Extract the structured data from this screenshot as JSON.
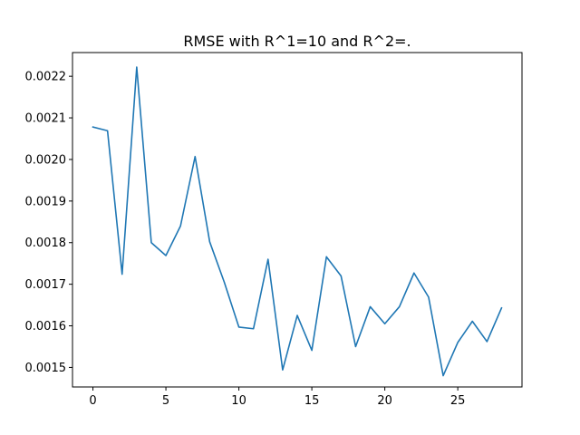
{
  "chart_data": {
    "type": "line",
    "title": "RMSE with R^1=10 and R^2=.",
    "xlabel": "",
    "ylabel": "",
    "xlim": [
      -1.4,
      29.4
    ],
    "ylim": [
      0.001453,
      0.002257
    ],
    "xticks": [
      0,
      5,
      10,
      15,
      20,
      25
    ],
    "xtick_labels": [
      "0",
      "5",
      "10",
      "15",
      "20",
      "25"
    ],
    "yticks": [
      0.0015,
      0.0016,
      0.0017,
      0.0018,
      0.0019,
      0.002,
      0.0021,
      0.0022
    ],
    "ytick_labels": [
      "0.0015",
      "0.0016",
      "0.0017",
      "0.0018",
      "0.0019",
      "0.0020",
      "0.0021",
      "0.0022"
    ],
    "grid": false,
    "legend": "none",
    "series": [
      {
        "color": "#1f77b4",
        "x": [
          0,
          1,
          2,
          3,
          4,
          5,
          6,
          7,
          8,
          9,
          10,
          11,
          12,
          13,
          14,
          15,
          16,
          17,
          18,
          19,
          20,
          21,
          22,
          23,
          24,
          25,
          26,
          27,
          28
        ],
        "values": [
          0.002078,
          0.002069,
          0.001724,
          0.002222,
          0.0018,
          0.001769,
          0.00184,
          0.002007,
          0.001802,
          0.001705,
          0.001597,
          0.001593,
          0.00176,
          0.001494,
          0.001625,
          0.001541,
          0.001766,
          0.00172,
          0.00155,
          0.001646,
          0.001605,
          0.001646,
          0.001727,
          0.001669,
          0.00148,
          0.00156,
          0.001611,
          0.001562,
          0.001643
        ]
      }
    ]
  }
}
